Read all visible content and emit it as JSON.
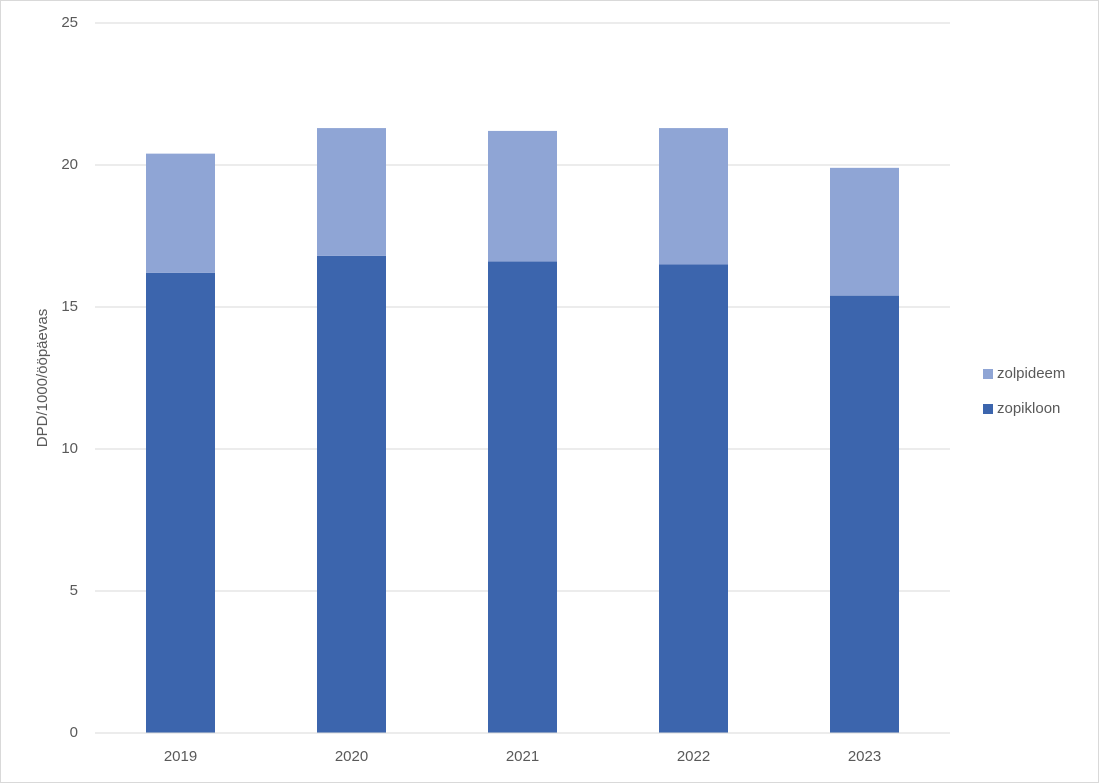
{
  "chart_data": {
    "type": "stacked-bar",
    "y_label": "DPD/1000/ööpäevas",
    "categories": [
      "2019",
      "2020",
      "2021",
      "2022",
      "2023"
    ],
    "series": [
      {
        "name": "zopikloon",
        "color": "#3c65ad",
        "values": [
          16.2,
          16.8,
          16.6,
          16.5,
          15.4
        ]
      },
      {
        "name": "zolpideem",
        "color": "#8fa5d5",
        "values": [
          4.2,
          4.5,
          4.6,
          4.8,
          4.5
        ]
      }
    ],
    "ylim": [
      0,
      25
    ],
    "yticks": [
      0,
      5,
      10,
      15,
      20,
      25
    ],
    "grid": true,
    "legend": "right"
  }
}
